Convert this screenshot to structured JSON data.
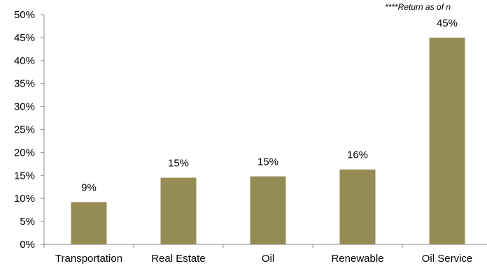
{
  "chart_data": {
    "type": "bar",
    "categories": [
      "Transportation",
      "Real Estate",
      "Oil",
      "Renewable",
      "Oil Service"
    ],
    "values": [
      9.2,
      14.5,
      14.8,
      16.3,
      45.0
    ],
    "data_labels": [
      "9%",
      "15%",
      "15%",
      "16%",
      "45%"
    ],
    "y_ticks": [
      "0%",
      "5%",
      "10%",
      "15%",
      "20%",
      "25%",
      "30%",
      "35%",
      "40%",
      "45%",
      "50%"
    ],
    "ylim": [
      0,
      50
    ],
    "grid": false,
    "bar_color": "#958b55",
    "annotation": "****Return as of n",
    "title": "",
    "xlabel": "",
    "ylabel": ""
  }
}
